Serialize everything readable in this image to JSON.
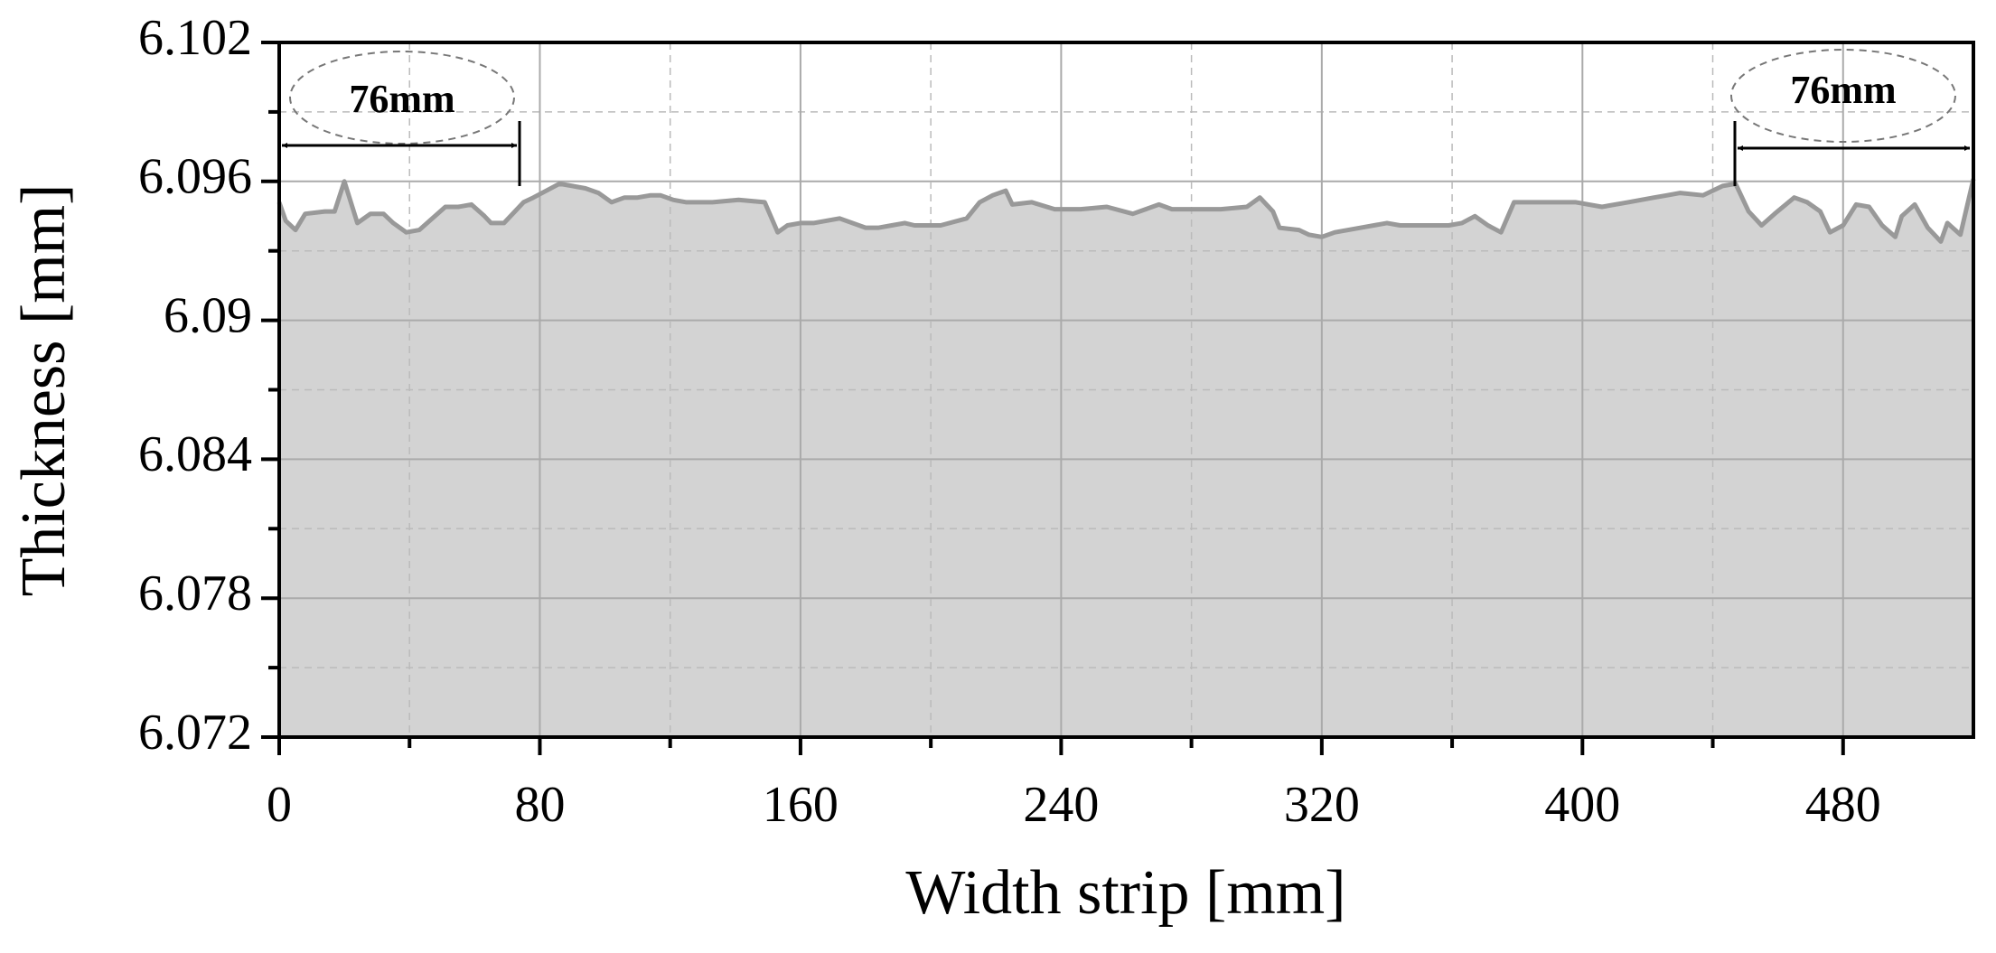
{
  "chart_data": {
    "type": "area",
    "x_label": "Width strip [mm]",
    "y_label": "Thickness [mm]",
    "x": [
      0,
      2,
      5,
      8,
      14,
      17,
      20,
      24,
      28,
      32,
      35,
      39,
      43,
      47,
      51,
      55,
      59,
      63,
      65,
      69,
      73,
      75,
      78,
      82,
      86,
      90,
      94,
      98,
      102,
      106,
      110,
      114,
      117,
      121,
      125,
      133,
      141,
      149,
      153,
      156,
      160,
      164,
      172,
      180,
      184,
      188,
      192,
      195,
      203,
      211,
      215,
      219,
      223,
      225,
      231,
      238,
      246,
      254,
      262,
      270,
      274,
      281,
      289,
      297,
      301,
      305,
      307,
      313,
      316,
      320,
      324,
      332,
      340,
      344,
      352,
      359,
      363,
      367,
      371,
      375,
      379,
      383,
      391,
      398,
      406,
      414,
      422,
      426,
      430,
      437,
      443,
      447,
      451,
      455,
      459,
      465,
      469,
      473,
      476,
      480,
      484,
      488,
      492,
      496,
      498,
      502,
      506,
      510,
      512,
      516,
      520
    ],
    "values": [
      6.0951,
      6.0943,
      6.0939,
      6.0946,
      6.0947,
      6.0947,
      6.096,
      6.0942,
      6.0946,
      6.0946,
      6.0942,
      6.0938,
      6.0939,
      6.0944,
      6.0949,
      6.0949,
      6.095,
      6.0945,
      6.0942,
      6.0942,
      6.0948,
      6.0951,
      6.0953,
      6.0956,
      6.0959,
      6.0958,
      6.0957,
      6.0955,
      6.0951,
      6.0953,
      6.0953,
      6.0954,
      6.0954,
      6.0952,
      6.0951,
      6.0951,
      6.0952,
      6.0951,
      6.0938,
      6.0941,
      6.0942,
      6.0942,
      6.0944,
      6.094,
      6.094,
      6.0941,
      6.0942,
      6.0941,
      6.0941,
      6.0944,
      6.0951,
      6.0954,
      6.0956,
      6.095,
      6.0951,
      6.0948,
      6.0948,
      6.0949,
      6.0946,
      6.095,
      6.0948,
      6.0948,
      6.0948,
      6.0949,
      6.0953,
      6.0947,
      6.094,
      6.0939,
      6.0937,
      6.0936,
      6.0938,
      6.094,
      6.0942,
      6.0941,
      6.0941,
      6.0941,
      6.0942,
      6.0945,
      6.0941,
      6.0938,
      6.0951,
      6.0951,
      6.0951,
      6.0951,
      6.0949,
      6.0951,
      6.0953,
      6.0954,
      6.0955,
      6.0954,
      6.0958,
      6.0959,
      6.0947,
      6.0941,
      6.0946,
      6.0953,
      6.0951,
      6.0947,
      6.0938,
      6.0941,
      6.095,
      6.0949,
      6.0941,
      6.0936,
      6.0945,
      6.095,
      6.094,
      6.0934,
      6.0942,
      6.0937,
      6.0961
    ],
    "color": "#d3d3d3",
    "line_color": "#999999",
    "xlim": [
      0,
      520
    ],
    "xticks": [
      0,
      80,
      160,
      240,
      320,
      400,
      480
    ],
    "ylim": [
      6.072,
      6.102
    ],
    "yticks": [
      6.072,
      6.078,
      6.084,
      6.09,
      6.096,
      6.102
    ],
    "grid": true,
    "annotations": [
      {
        "text": "76mm"
      },
      {
        "text": "76mm"
      }
    ]
  }
}
